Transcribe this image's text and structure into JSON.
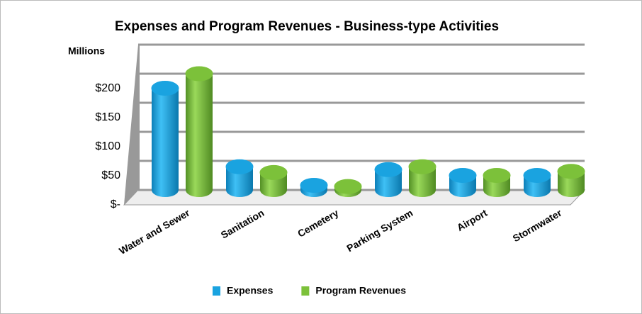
{
  "chart_data": {
    "type": "bar",
    "title": "Expenses and Program Revenues - Business-type Activities",
    "y_axis_label": "Millions",
    "categories": [
      "Water and Sewer",
      "Sanitation",
      "Cemetery",
      "Parking System",
      "Airport",
      "Stormwater"
    ],
    "series": [
      {
        "name": "Expenses",
        "color": "#1aa3e0",
        "values": [
          175,
          40,
          8,
          35,
          25,
          25
        ]
      },
      {
        "name": "Program Revenues",
        "color": "#7cc13a",
        "values": [
          200,
          30,
          6,
          40,
          25,
          32
        ]
      }
    ],
    "ylim": [
      0,
      250
    ],
    "yticks": [
      {
        "value": 0,
        "label": "$-"
      },
      {
        "value": 50,
        "label": "$50"
      },
      {
        "value": 100,
        "label": "$100"
      },
      {
        "value": 150,
        "label": "$150"
      },
      {
        "value": 200,
        "label": "$200"
      }
    ],
    "grid": true,
    "legend": "bottom"
  }
}
